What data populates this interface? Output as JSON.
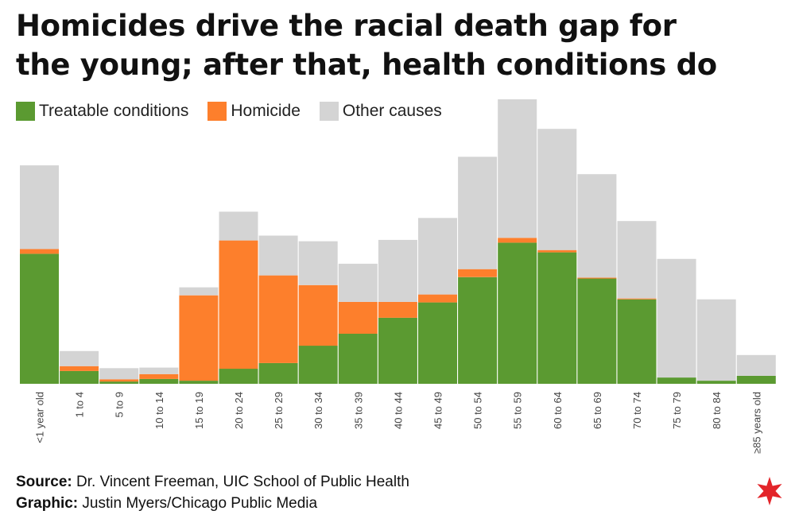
{
  "title_line1": "Homicides drive the racial death gap for",
  "title_line2": "the young; after that, health conditions do",
  "legend": [
    {
      "label": "Treatable conditions",
      "color": "#5b9a31"
    },
    {
      "label": "Homicide",
      "color": "#fd7f2c"
    },
    {
      "label": "Other causes",
      "color": "#d4d4d4"
    }
  ],
  "source": {
    "source_label": "Source:",
    "source_text": " Dr. Vincent Freeman, UIC School of Public Health",
    "graphic_label": "Graphic:",
    "graphic_text": " Justin Myers/Chicago Public Media"
  },
  "logo_icon": "red-six-point-star-icon",
  "chart_data": {
    "type": "bar",
    "stacked": true,
    "title": "Homicides drive the racial death gap for the young; after that, health conditions do",
    "xlabel": "",
    "ylabel": "",
    "ylim": [
      0,
      100
    ],
    "categories": [
      "<1 year old",
      "1 to 4",
      "5 to 9",
      "10 to 14",
      "15 to 19",
      "20 to 24",
      "25 to 29",
      "30 to 34",
      "35 to 39",
      "40 to 44",
      "45 to 49",
      "50 to 54",
      "55 to 59",
      "60 to 64",
      "65 to 69",
      "70 to 74",
      "75 to 79",
      "80 to 84",
      "≥85 years old"
    ],
    "series": [
      {
        "name": "Treatable conditions",
        "color": "#5b9a31",
        "values": [
          45.7,
          4.5,
          0.8,
          1.7,
          1.1,
          5.3,
          7.3,
          13.4,
          17.6,
          23.2,
          28.6,
          37.5,
          49.6,
          46.2,
          37.0,
          29.7,
          2.2,
          1.1,
          2.8
        ]
      },
      {
        "name": "Homicide",
        "color": "#fd7f2c",
        "values": [
          1.7,
          1.7,
          0.8,
          1.7,
          30.0,
          45.1,
          30.8,
          21.3,
          11.2,
          5.6,
          2.8,
          2.8,
          1.7,
          0.8,
          0.3,
          0.3,
          0,
          0,
          0
        ]
      },
      {
        "name": "Other causes",
        "color": "#d4d4d4",
        "values": [
          29.4,
          5.3,
          3.9,
          2.3,
          2.8,
          10.1,
          14.0,
          15.4,
          13.4,
          21.8,
          26.9,
          39.5,
          48.7,
          42.6,
          36.4,
          27.2,
          41.7,
          28.6,
          7.3
        ]
      }
    ]
  }
}
